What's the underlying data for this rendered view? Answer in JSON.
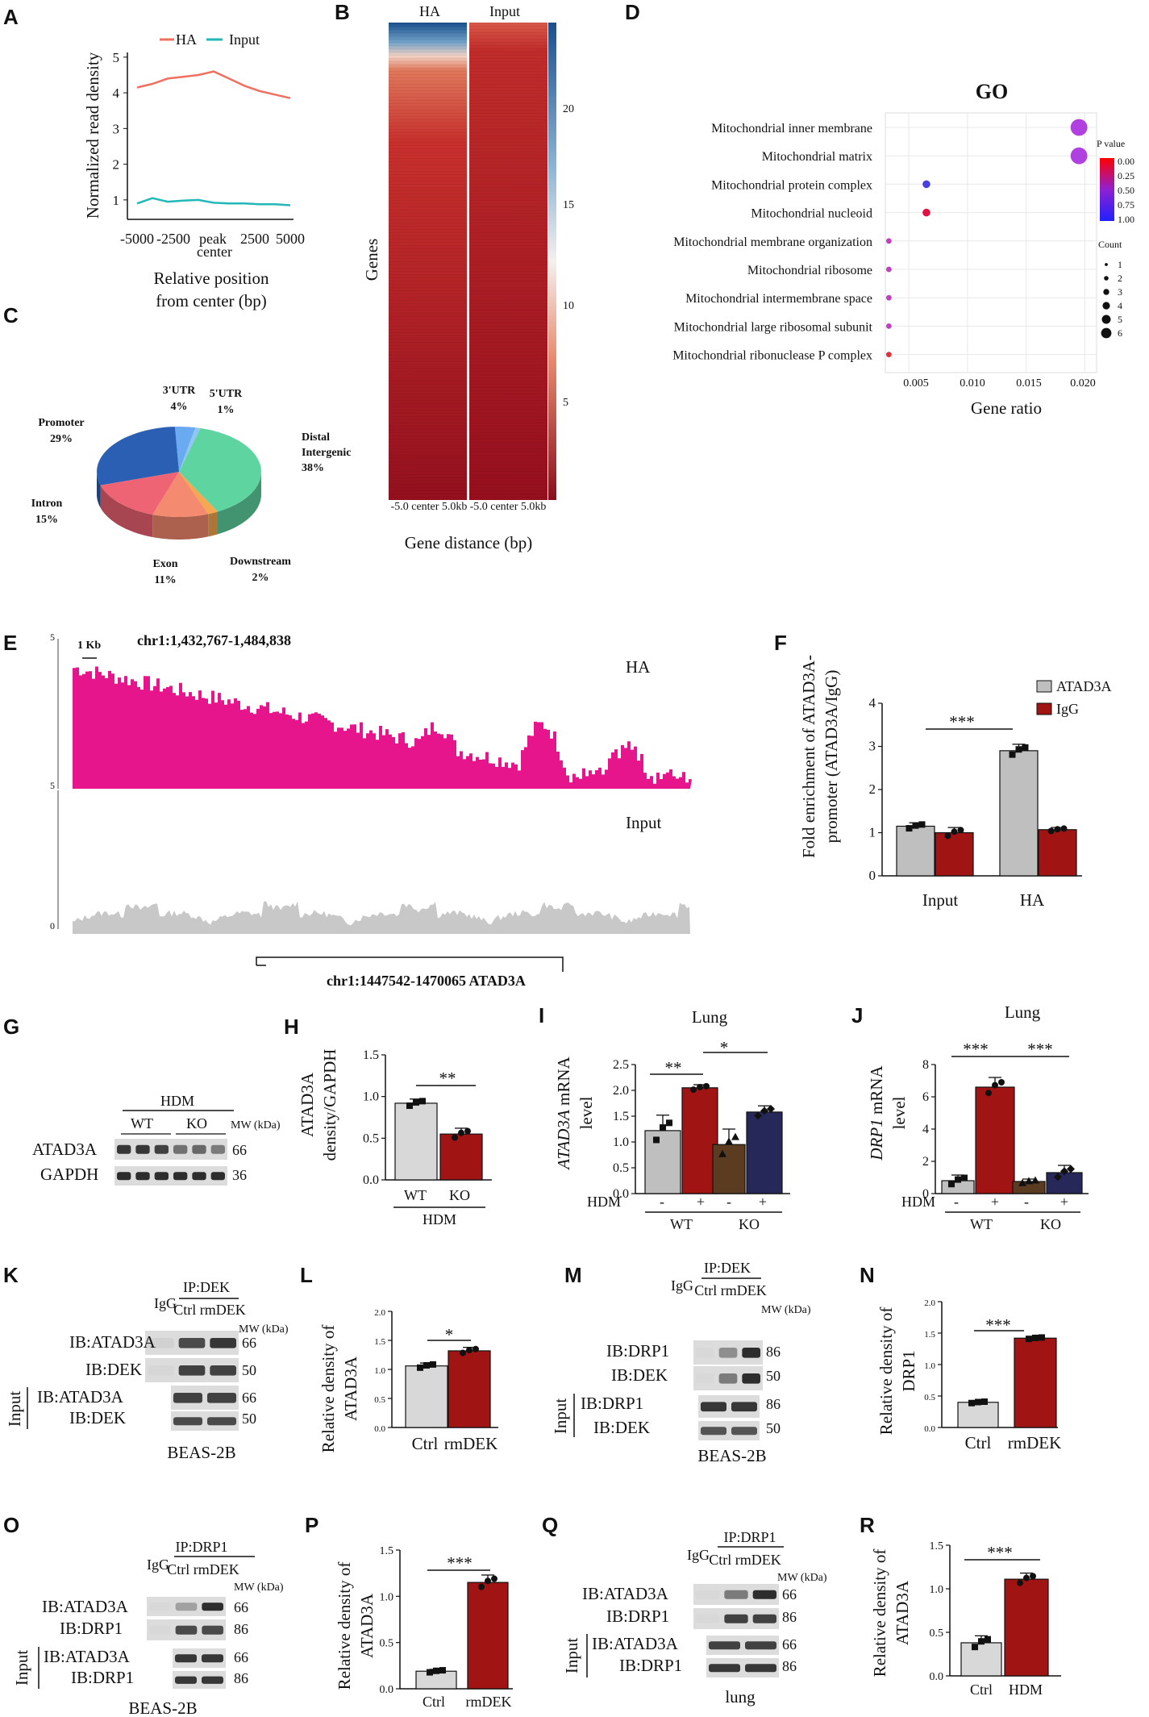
{
  "panels": {
    "A": {
      "label": "A",
      "legend": [
        "HA",
        "Input"
      ],
      "ylabel": "Normalized read density",
      "xticks": [
        "-5000",
        "-2500",
        "peak",
        "2500",
        "5000"
      ],
      "xtick_center": "center",
      "yticks": [
        "1",
        "2",
        "3",
        "4",
        "5"
      ],
      "xlabel_1": "Relative position",
      "xlabel_2": "from center (bp)"
    },
    "B": {
      "label": "B",
      "col_titles": [
        "HA",
        "Input"
      ],
      "ylabel": "Genes",
      "scale_ticks": [
        "20",
        "15",
        "10",
        "5"
      ],
      "xticks": "-5.0 center 5.0kb",
      "xlabel": "Gene distance (bp)"
    },
    "C": {
      "label": "C",
      "slices": [
        {
          "name": "3'UTR",
          "pct": "4%"
        },
        {
          "name": "5'UTR",
          "pct": "1%"
        },
        {
          "name": "Promoter",
          "pct": "29%"
        },
        {
          "name": "Distal",
          "name2": "Intergenic",
          "pct": "38%"
        },
        {
          "name": "Intron",
          "pct": "15%"
        },
        {
          "name": "Exon",
          "pct": "11%"
        },
        {
          "name": "Downstream",
          "pct": "2%"
        }
      ]
    },
    "D": {
      "label": "D",
      "title": "GO",
      "terms": [
        "Mitochondrial inner membrane",
        "Mitochondrial matrix",
        "Mitochondrial protein complex",
        "Mitochondrial nucleoid",
        "Mitochondrial membrane organization",
        "Mitochondrial ribosome",
        "Mitochondrial intermembrane space",
        "Mitochondrial large ribosomal subunit",
        "Mitochondrial ribonuclease P complex"
      ],
      "xticks": [
        "0.005",
        "0.010",
        "0.015",
        "0.020"
      ],
      "xlabel": "Gene ratio",
      "pvalue_title": "P value",
      "pvalue_ticks": [
        "0.00",
        "0.25",
        "0.50",
        "0.75",
        "1.00"
      ],
      "count_title": "Count",
      "count_ticks": [
        "1",
        "2",
        "3",
        "4",
        "5",
        "6"
      ]
    },
    "E": {
      "label": "E",
      "scale": "1 Kb",
      "locus": "chr1:1,432,767-1,484,838",
      "track1": "HA",
      "track2": "Input",
      "ymax": "5",
      "ymin": "0",
      "gene": "chr1:1447542-1470065 ATAD3A"
    },
    "F": {
      "label": "F",
      "ylabel_1": "Fold enrichment of ATAD3A-",
      "ylabel_2": "promoter (ATAD3A/IgG)",
      "legend": [
        "ATAD3A",
        "IgG"
      ],
      "groups": [
        "Input",
        "HA"
      ],
      "yticks": [
        "0",
        "1",
        "2",
        "3",
        "4"
      ],
      "sig": "***"
    },
    "G": {
      "label": "G",
      "hdm": "HDM",
      "wt": "WT",
      "ko": "KO",
      "mw": "MW (kDa)",
      "bands": [
        "ATAD3A",
        "GAPDH"
      ],
      "mws": [
        "66",
        "36"
      ]
    },
    "H": {
      "label": "H",
      "ylabel_1": "ATAD3A",
      "ylabel_2": "density/GAPDH",
      "yticks": [
        "0.0",
        "0.5",
        "1.0",
        "1.5"
      ],
      "cats": [
        "WT",
        "KO"
      ],
      "group": "HDM",
      "sig": "**"
    },
    "I": {
      "label": "I",
      "title": "Lung",
      "ylabel_gene": "ATAD3A",
      "ylabel_rest": " mRNA",
      "ylabel_2": "level",
      "yticks": [
        "0.0",
        "0.5",
        "1.0",
        "1.5",
        "2.0",
        "2.5"
      ],
      "hdm": "HDM",
      "signs": [
        "-",
        "+",
        "-",
        "+"
      ],
      "groups": [
        "WT",
        "KO"
      ],
      "sig1": "**",
      "sig2": "*"
    },
    "J": {
      "label": "J",
      "title": "Lung",
      "ylabel_gene": "DRP1",
      "ylabel_rest": " mRNA",
      "ylabel_2": "level",
      "yticks": [
        "0",
        "2",
        "4",
        "6",
        "8"
      ],
      "hdm": "HDM",
      "signs": [
        "-",
        "+",
        "-",
        "+"
      ],
      "groups": [
        "WT",
        "KO"
      ],
      "sig1": "***",
      "sig2": "***"
    },
    "K": {
      "label": "K",
      "ip": "IP:DEK",
      "igg": "IgG",
      "lanes": "Ctrl rmDEK",
      "mw": "MW (kDa)",
      "bands": [
        "IB:ATAD3A",
        "IB:DEK",
        "IB:ATAD3A",
        "IB:DEK"
      ],
      "mws": [
        "66",
        "50",
        "66",
        "50"
      ],
      "input": "Input",
      "cell": "BEAS-2B"
    },
    "L": {
      "label": "L",
      "ylabel_1": "Relative density of",
      "ylabel_2": "ATAD3A",
      "yticks": [
        "0.0",
        "0.5",
        "1.0",
        "1.5",
        "2.0"
      ],
      "cats": [
        "Ctrl",
        "rmDEK"
      ],
      "sig": "*"
    },
    "M": {
      "label": "M",
      "ip": "IP:DEK",
      "igg": "IgG",
      "lanes": "Ctrl rmDEK",
      "mw": "MW (kDa)",
      "bands": [
        "IB:DRP1",
        "IB:DEK",
        "IB:DRP1",
        "IB:DEK"
      ],
      "mws": [
        "86",
        "50",
        "86",
        "50"
      ],
      "input": "Input",
      "cell": "BEAS-2B"
    },
    "N": {
      "label": "N",
      "ylabel_1": "Relative density of",
      "ylabel_2": "DRP1",
      "yticks": [
        "0.0",
        "0.5",
        "1.0",
        "1.5",
        "2.0"
      ],
      "cats": [
        "Ctrl",
        "rmDEK"
      ],
      "sig": "***"
    },
    "O": {
      "label": "O",
      "ip": "IP:DRP1",
      "igg": "IgG",
      "lanes": "Ctrl rmDEK",
      "mw": "MW (kDa)",
      "bands": [
        "IB:ATAD3A",
        "IB:DRP1",
        "IB:ATAD3A",
        "IB:DRP1"
      ],
      "mws": [
        "66",
        "86",
        "66",
        "86"
      ],
      "input": "Input",
      "cell": "BEAS-2B"
    },
    "P": {
      "label": "P",
      "ylabel_1": "Relative density of",
      "ylabel_2": "ATAD3A",
      "yticks": [
        "0.0",
        "0.5",
        "1.0",
        "1.5"
      ],
      "cats": [
        "Ctrl",
        "rmDEK"
      ],
      "sig": "***"
    },
    "Q": {
      "label": "Q",
      "ip": "IP:DRP1",
      "igg": "IgG",
      "lanes": "Ctrl rmDEK",
      "mw": "MW (kDa)",
      "bands": [
        "IB:ATAD3A",
        "IB:DRP1",
        "IB:ATAD3A",
        "IB:DRP1"
      ],
      "mws": [
        "66",
        "86",
        "66",
        "86"
      ],
      "input": "Input",
      "cell": "lung"
    },
    "R": {
      "label": "R",
      "ylabel_1": "Relative density of",
      "ylabel_2": "ATAD3A",
      "yticks": [
        "0.0",
        "0.5",
        "1.0",
        "1.5"
      ],
      "cats": [
        "Ctrl",
        "HDM"
      ],
      "sig": "***"
    }
  },
  "chart_data": [
    {
      "panel": "A",
      "type": "line",
      "x": [
        -5000,
        -4000,
        -3000,
        -2000,
        -1000,
        0,
        1000,
        2000,
        3000,
        4000,
        5000
      ],
      "series": [
        {
          "name": "HA",
          "color": "#f07060",
          "values": [
            4.15,
            4.25,
            4.4,
            4.45,
            4.5,
            4.6,
            4.4,
            4.2,
            4.05,
            3.95,
            3.85
          ]
        },
        {
          "name": "Input",
          "color": "#22b8b8",
          "values": [
            0.9,
            1.05,
            0.95,
            0.98,
            1.0,
            0.92,
            0.9,
            0.9,
            0.88,
            0.88,
            0.85
          ]
        }
      ],
      "ylim": [
        0.5,
        5.2
      ]
    },
    {
      "panel": "C",
      "type": "pie",
      "categories": [
        "3'UTR",
        "5'UTR",
        "Distal Intergenic",
        "Downstream",
        "Exon",
        "Intron",
        "Promoter"
      ],
      "values": [
        4,
        1,
        38,
        2,
        11,
        15,
        29
      ],
      "colors": [
        "#6aaaf0",
        "#8ec6f4",
        "#5ed4a0",
        "#f5a850",
        "#f48a70",
        "#ef6474",
        "#2a5fb4"
      ]
    },
    {
      "panel": "D",
      "type": "scatter",
      "x": [
        0.0195,
        0.0195,
        0.0065,
        0.0065,
        0.0033,
        0.0033,
        0.0033,
        0.0033,
        0.0033
      ],
      "sizes": [
        6,
        6,
        2,
        2,
        1,
        1,
        1,
        1,
        1
      ],
      "colors": [
        "#b040e0",
        "#b040e0",
        "#4a40e0",
        "#e01040",
        "#c040c0",
        "#c040c0",
        "#c040c0",
        "#c040c0",
        "#e03040"
      ],
      "xlim": [
        0.003,
        0.021
      ]
    },
    {
      "panel": "F",
      "type": "bar",
      "categories": [
        "Input",
        "HA"
      ],
      "series": [
        {
          "name": "ATAD3A",
          "color": "#bfbfbf",
          "values": [
            1.15,
            2.9
          ],
          "errors": [
            0.08,
            0.15
          ]
        },
        {
          "name": "IgG",
          "color": "#a01414",
          "values": [
            1.0,
            1.07
          ],
          "errors": [
            0.12,
            0.05
          ]
        }
      ],
      "ylim": [
        0,
        4
      ]
    },
    {
      "panel": "H",
      "type": "bar",
      "categories": [
        "WT",
        "KO"
      ],
      "values": [
        0.92,
        0.55
      ],
      "errors": [
        0.05,
        0.07
      ],
      "colors": [
        "#d8d8d8",
        "#a01414"
      ],
      "ylim": [
        0,
        1.5
      ]
    },
    {
      "panel": "I",
      "type": "bar",
      "categories": [
        "WT -",
        "WT +",
        "KO -",
        "KO +"
      ],
      "values": [
        1.22,
        2.05,
        0.95,
        1.58
      ],
      "errors": [
        0.3,
        0.06,
        0.3,
        0.12
      ],
      "colors": [
        "#bfbfbf",
        "#a01414",
        "#5c3c20",
        "#26285a"
      ],
      "ylim": [
        0,
        2.5
      ]
    },
    {
      "panel": "J",
      "type": "bar",
      "categories": [
        "WT -",
        "WT +",
        "KO -",
        "KO +"
      ],
      "values": [
        0.8,
        6.6,
        0.75,
        1.3
      ],
      "errors": [
        0.35,
        0.6,
        0.15,
        0.45
      ],
      "colors": [
        "#bfbfbf",
        "#a01414",
        "#5c3c20",
        "#26285a"
      ],
      "ylim": [
        0,
        8
      ]
    },
    {
      "panel": "L",
      "type": "bar",
      "categories": [
        "Ctrl",
        "rmDEK"
      ],
      "values": [
        1.06,
        1.32
      ],
      "errors": [
        0.05,
        0.06
      ],
      "colors": [
        "#d8d8d8",
        "#a01414"
      ],
      "ylim": [
        0,
        2.0
      ]
    },
    {
      "panel": "N",
      "type": "bar",
      "categories": [
        "Ctrl",
        "rmDEK"
      ],
      "values": [
        0.4,
        1.42
      ],
      "errors": [
        0.02,
        0.02
      ],
      "colors": [
        "#d8d8d8",
        "#a01414"
      ],
      "ylim": [
        0,
        2.0
      ]
    },
    {
      "panel": "P",
      "type": "bar",
      "categories": [
        "Ctrl",
        "rmDEK"
      ],
      "values": [
        0.19,
        1.15
      ],
      "errors": [
        0.02,
        0.08
      ],
      "colors": [
        "#d8d8d8",
        "#a01414"
      ],
      "ylim": [
        0,
        1.5
      ]
    },
    {
      "panel": "R",
      "type": "bar",
      "categories": [
        "Ctrl",
        "HDM"
      ],
      "values": [
        0.38,
        1.11
      ],
      "errors": [
        0.08,
        0.07
      ],
      "colors": [
        "#d8d8d8",
        "#a01414"
      ],
      "ylim": [
        0,
        1.5
      ]
    }
  ]
}
